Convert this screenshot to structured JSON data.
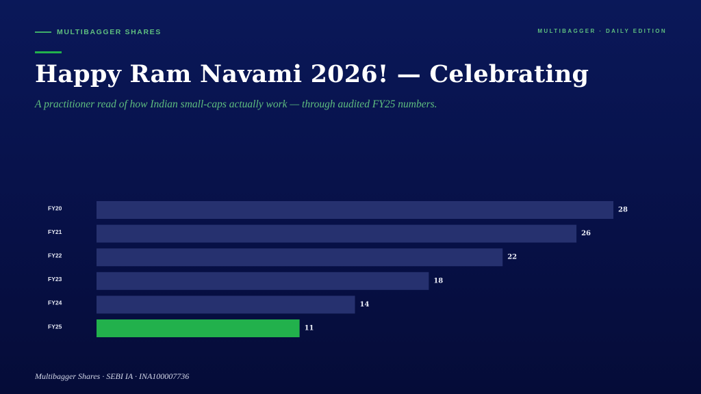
{
  "slide": {
    "kicker": "MULTIBAGGER SHARES",
    "edition": "MULTIBAGGER · DAILY EDITION",
    "title": "Happy Ram Navami 2026! — Celebrating",
    "subtitle": "A practitioner read of how Indian small-caps actually work — through audited FY25 numbers.",
    "footer": "Multibagger Shares · SEBI IA · INA100007736"
  },
  "chart_data": {
    "type": "bar",
    "orientation": "horizontal",
    "categories": [
      "FY20",
      "FY21",
      "FY22",
      "FY23",
      "FY24",
      "FY25"
    ],
    "values": [
      28,
      26,
      22,
      18,
      14,
      11
    ],
    "colors": [
      "#26316f",
      "#26316f",
      "#26316f",
      "#26316f",
      "#26316f",
      "#22b14c"
    ]
  }
}
